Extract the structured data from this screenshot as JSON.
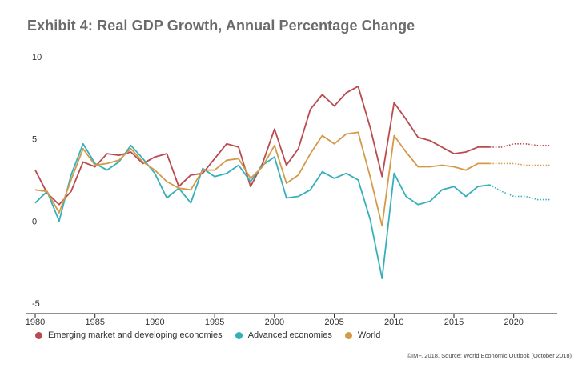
{
  "chart_data": {
    "type": "line",
    "title": "Exhibit 4: Real GDP Growth, Annual Percentage Change",
    "xlabel": "",
    "ylabel": "",
    "xlim": [
      1980,
      2023.5
    ],
    "ylim": [
      -5,
      10
    ],
    "x_ticks": [
      1980,
      1985,
      1990,
      1995,
      2000,
      2005,
      2010,
      2015,
      2020
    ],
    "x_tick_labels": [
      "1980",
      "1985",
      "1990",
      "1995",
      "2000",
      "2005",
      "2010",
      "2015",
      "2020"
    ],
    "y_ticks": [
      10,
      5,
      0,
      -5
    ],
    "y_tick_labels": [
      "10",
      "5",
      "0",
      "-5"
    ],
    "grid": false,
    "legend_position": "bottom-left",
    "x": [
      1980,
      1981,
      1982,
      1983,
      1984,
      1985,
      1986,
      1987,
      1988,
      1989,
      1990,
      1991,
      1992,
      1993,
      1994,
      1995,
      1996,
      1997,
      1998,
      1999,
      2000,
      2001,
      2002,
      2003,
      2004,
      2005,
      2006,
      2007,
      2008,
      2009,
      2010,
      2011,
      2012,
      2013,
      2014,
      2015,
      2016,
      2017,
      2018,
      2019,
      2020,
      2021,
      2022,
      2023
    ],
    "forecast_from": 2018,
    "series": [
      {
        "name": "Emerging market and developing economies",
        "color": "#b94a4e",
        "values": [
          3.2,
          1.8,
          1.1,
          1.9,
          3.7,
          3.4,
          4.2,
          4.1,
          4.3,
          3.6,
          4.0,
          4.2,
          2.2,
          2.9,
          3.0,
          3.9,
          4.8,
          4.6,
          2.2,
          3.6,
          5.7,
          3.5,
          4.5,
          6.9,
          7.8,
          7.1,
          7.9,
          8.3,
          5.8,
          2.8,
          7.3,
          6.3,
          5.2,
          5.0,
          4.6,
          4.2,
          4.3,
          4.6,
          4.6,
          4.6,
          4.8,
          4.8,
          4.7,
          4.7
        ]
      },
      {
        "name": "Advanced economies",
        "color": "#35b0ba",
        "values": [
          1.2,
          1.9,
          0.1,
          2.9,
          4.8,
          3.6,
          3.2,
          3.7,
          4.7,
          3.9,
          3.0,
          1.5,
          2.1,
          1.2,
          3.3,
          2.8,
          3.0,
          3.5,
          2.5,
          3.5,
          4.0,
          1.5,
          1.6,
          2.0,
          3.1,
          2.7,
          3.0,
          2.6,
          0.2,
          -3.4,
          3.0,
          1.6,
          1.1,
          1.3,
          2.0,
          2.2,
          1.6,
          2.2,
          2.3,
          1.9,
          1.6,
          1.6,
          1.4,
          1.4
        ]
      },
      {
        "name": "World",
        "color": "#d39a4a",
        "values": [
          2.0,
          1.9,
          0.6,
          2.6,
          4.5,
          3.5,
          3.6,
          3.8,
          4.5,
          3.7,
          3.2,
          2.5,
          2.1,
          2.0,
          3.2,
          3.2,
          3.8,
          3.9,
          2.7,
          3.4,
          4.7,
          2.4,
          2.9,
          4.2,
          5.3,
          4.8,
          5.4,
          5.5,
          2.8,
          -0.2,
          5.3,
          4.3,
          3.4,
          3.4,
          3.5,
          3.4,
          3.2,
          3.6,
          3.6,
          3.6,
          3.6,
          3.5,
          3.5,
          3.5
        ]
      }
    ]
  },
  "source_text": "©IMF, 2018, Source: World Economic Outlook (October 2018)"
}
